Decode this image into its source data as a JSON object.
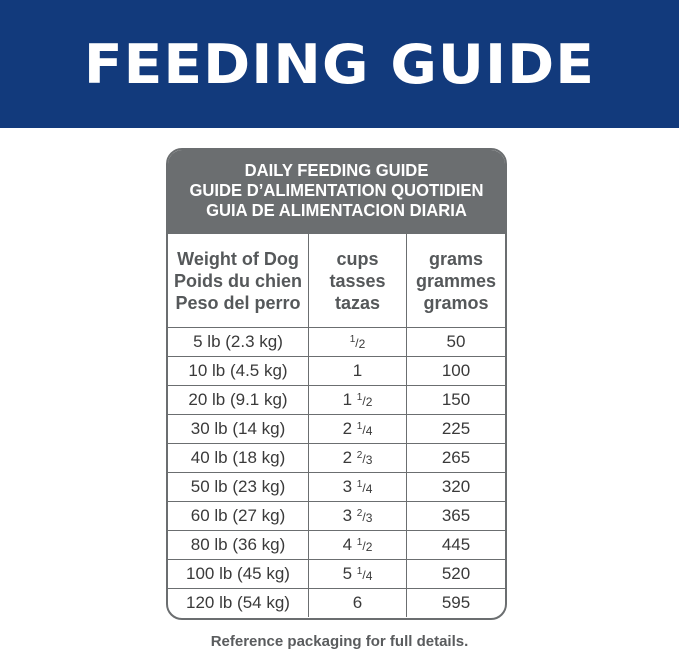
{
  "banner": {
    "title": "FEEDING GUIDE",
    "color": "#123a7c"
  },
  "table": {
    "title_lines": [
      "DAILY FEEDING GUIDE",
      "GUIDE D’ALIMENTATION QUOTIDIEN",
      "GUIA DE ALIMENTACION DIARIA"
    ],
    "columns": [
      [
        "Weight of Dog",
        "Poids du chien",
        "Peso del perro"
      ],
      [
        "cups",
        "tasses",
        "tazas"
      ],
      [
        "grams",
        "grammes",
        "gramos"
      ]
    ],
    "rows": [
      {
        "weight": "5 lb (2.3 kg)",
        "cups_whole": "",
        "num": "1",
        "den": "2",
        "grams": "50"
      },
      {
        "weight": "10 lb (4.5 kg)",
        "cups_whole": "1",
        "num": "",
        "den": "",
        "grams": "100"
      },
      {
        "weight": "20 lb (9.1 kg)",
        "cups_whole": "1 ",
        "num": "1",
        "den": "2",
        "grams": "150"
      },
      {
        "weight": "30 lb (14 kg)",
        "cups_whole": "2 ",
        "num": "1",
        "den": "4",
        "grams": "225"
      },
      {
        "weight": "40 lb (18 kg)",
        "cups_whole": "2 ",
        "num": "2",
        "den": "3",
        "grams": "265"
      },
      {
        "weight": "50 lb (23 kg)",
        "cups_whole": "3 ",
        "num": "1",
        "den": "4",
        "grams": "320"
      },
      {
        "weight": "60 lb (27 kg)",
        "cups_whole": "3 ",
        "num": "2",
        "den": "3",
        "grams": "365"
      },
      {
        "weight": "80 lb (36 kg)",
        "cups_whole": "4 ",
        "num": "1",
        "den": "2",
        "grams": "445"
      },
      {
        "weight": "100 lb (45 kg)",
        "cups_whole": "5 ",
        "num": "1",
        "den": "4",
        "grams": "520"
      },
      {
        "weight": "120 lb (54 kg)",
        "cups_whole": "6",
        "num": "",
        "den": "",
        "grams": "595"
      }
    ]
  },
  "footer": {
    "note": "Reference packaging for full details."
  }
}
